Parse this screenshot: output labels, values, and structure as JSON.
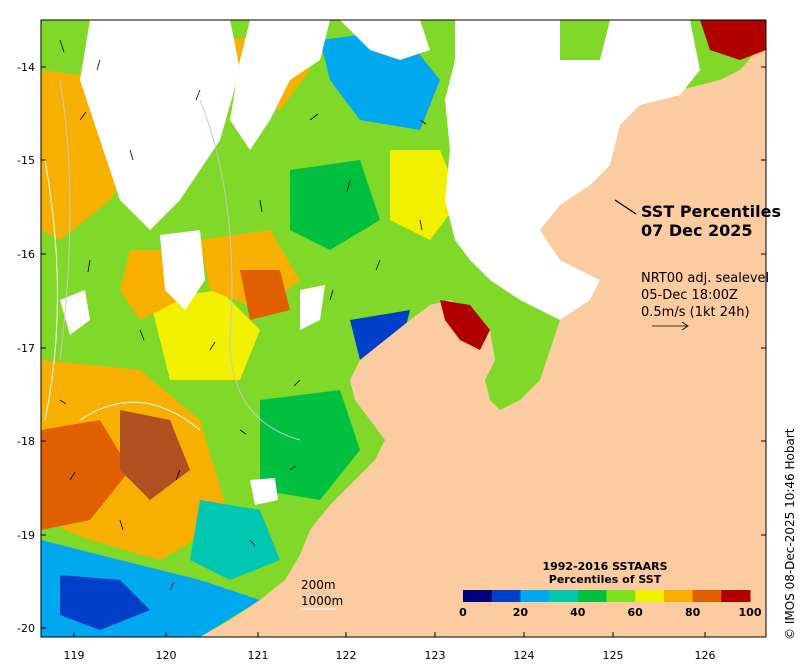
{
  "title": {
    "line1": "SST Percentiles",
    "line2": "07 Dec 2025"
  },
  "current_info": {
    "line1": "NRT00 adj. sealevel",
    "line2": "05-Dec 18:00Z",
    "line3": "0.5m/s (1kt 24h)"
  },
  "depth_legend": {
    "contour1": "200m",
    "contour2": "1000m"
  },
  "colorbar": {
    "title_line1": "1992-2016 SSTAARS",
    "title_line2": "Percentiles of SST",
    "colors": [
      "#00007f",
      "#0040c8",
      "#00a8f0",
      "#00c8b0",
      "#00c040",
      "#80e020",
      "#f0f000",
      "#f8b000",
      "#e06000",
      "#b00000"
    ],
    "labels": [
      "0",
      "20",
      "40",
      "60",
      "80",
      "100"
    ]
  },
  "axes": {
    "lon_labels": [
      "119",
      "120",
      "121",
      "122",
      "123",
      "124",
      "125",
      "126"
    ],
    "lat_labels": [
      "-14",
      "-15",
      "-16",
      "-17",
      "-18",
      "-19",
      "-20"
    ]
  },
  "colors": {
    "land": "#fccca0",
    "no_data": "#ffffff"
  },
  "credit": "© IMOS 08-Dec-2025 10:46 Hobart"
}
